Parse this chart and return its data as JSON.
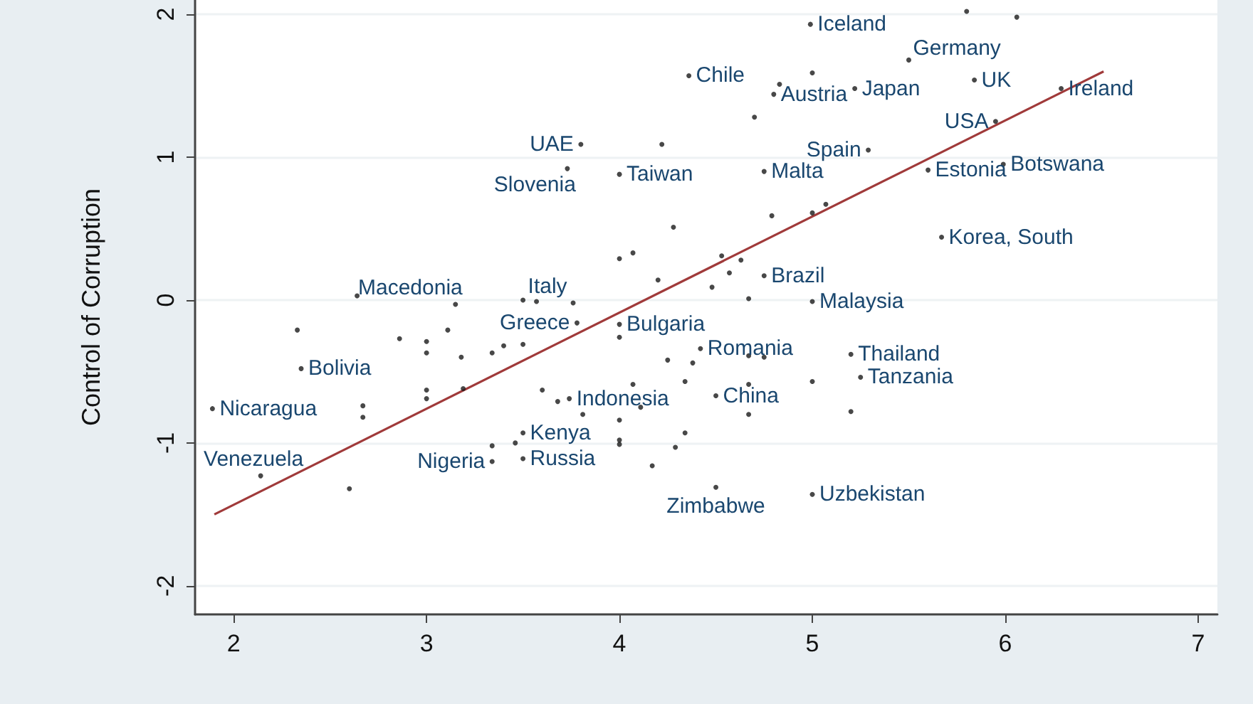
{
  "chart_data": {
    "type": "scatter",
    "ylabel": "Control of Corruption",
    "xlim": [
      1.8,
      7.1
    ],
    "xticks": [
      2,
      3,
      4,
      5,
      6,
      7
    ],
    "ylim": [
      -2.2,
      2.1
    ],
    "yticks": [
      -2,
      -1,
      0,
      1,
      2
    ],
    "grid": "y",
    "series": [
      {
        "color": "#1a1a1a",
        "marker": "circle",
        "x": [
          4.99,
          5.8,
          6.06,
          4.36,
          5.0,
          5.5,
          5.84,
          4.83,
          4.8,
          5.22,
          4.7,
          6.29,
          5.95,
          3.8,
          4.22,
          3.73,
          4.0,
          5.29,
          4.75,
          5.6,
          5.99,
          4.28,
          4.0,
          4.07,
          4.79,
          5.0,
          5.07,
          5.67,
          4.2,
          4.48,
          4.53,
          4.57,
          4.63,
          4.75,
          4.67,
          5.0,
          2.64,
          3.15,
          3.5,
          3.57,
          3.76,
          3.78,
          2.33,
          2.86,
          3.0,
          3.0,
          3.11,
          3.18,
          3.34,
          3.4,
          3.5,
          4.0,
          4.0,
          2.35,
          1.89,
          2.67,
          2.67,
          3.0,
          3.0,
          3.19,
          2.14,
          2.6,
          3.6,
          3.68,
          3.74,
          3.81,
          4.0,
          4.07,
          4.34,
          4.25,
          4.38,
          4.11,
          4.5,
          3.5,
          3.46,
          3.34,
          3.34,
          3.5,
          4.0,
          4.0,
          4.34,
          4.29,
          4.17,
          4.5,
          5.0,
          4.42,
          4.67,
          4.75,
          4.67,
          4.67,
          5.0,
          5.2,
          5.25,
          5.2
        ],
        "values": [
          1.93,
          2.02,
          1.98,
          1.57,
          1.59,
          1.68,
          1.54,
          1.51,
          1.44,
          1.48,
          1.28,
          1.48,
          1.25,
          1.09,
          1.09,
          0.92,
          0.88,
          1.05,
          0.9,
          0.91,
          0.95,
          0.51,
          0.29,
          0.33,
          0.59,
          0.61,
          0.67,
          0.44,
          0.14,
          0.09,
          0.31,
          0.19,
          0.28,
          0.17,
          0.01,
          -0.01,
          0.03,
          -0.03,
          0.0,
          -0.01,
          -0.02,
          -0.16,
          -0.21,
          -0.27,
          -0.29,
          -0.37,
          -0.21,
          -0.4,
          -0.37,
          -0.32,
          -0.31,
          -0.17,
          -0.26,
          -0.48,
          -0.76,
          -0.74,
          -0.82,
          -0.63,
          -0.69,
          -0.62,
          -1.23,
          -1.32,
          -0.63,
          -0.71,
          -0.69,
          -0.8,
          -0.84,
          -0.59,
          -0.57,
          -0.42,
          -0.44,
          -0.75,
          -0.67,
          -0.93,
          -1.0,
          -1.02,
          -1.13,
          -1.11,
          -0.98,
          -1.01,
          -0.93,
          -1.03,
          -1.16,
          -1.31,
          -1.36,
          -0.34,
          -0.39,
          -0.4,
          -0.59,
          -0.8,
          -0.57,
          -0.38,
          -0.54,
          -0.78
        ]
      },
      {
        "type": "line",
        "color": "#a03a3a",
        "marker": "none",
        "x": [
          1.9,
          6.51
        ],
        "values": [
          -1.5,
          1.6
        ]
      }
    ],
    "annotations": [
      {
        "text": "Iceland",
        "x": 4.99,
        "y": 1.93
      },
      {
        "text": "Chile",
        "x": 4.36,
        "y": 1.57
      },
      {
        "text": "Germany",
        "x": 5.5,
        "y": 1.68
      },
      {
        "text": "UK",
        "x": 5.84,
        "y": 1.54
      },
      {
        "text": "Austria",
        "x": 4.8,
        "y": 1.44
      },
      {
        "text": "Japan",
        "x": 5.22,
        "y": 1.48
      },
      {
        "text": "Ireland",
        "x": 6.29,
        "y": 1.48
      },
      {
        "text": "USA",
        "x": 5.95,
        "y": 1.25
      },
      {
        "text": "UAE",
        "x": 3.8,
        "y": 1.09
      },
      {
        "text": "Slovenia",
        "x": 3.73,
        "y": 0.92
      },
      {
        "text": "Taiwan",
        "x": 4.0,
        "y": 0.88
      },
      {
        "text": "Spain",
        "x": 5.29,
        "y": 1.05
      },
      {
        "text": "Malta",
        "x": 4.75,
        "y": 0.9
      },
      {
        "text": "Estonia",
        "x": 5.6,
        "y": 0.91
      },
      {
        "text": "Botswana",
        "x": 5.99,
        "y": 0.95
      },
      {
        "text": "Korea, South",
        "x": 5.67,
        "y": 0.44
      },
      {
        "text": "Brazil",
        "x": 4.75,
        "y": 0.17
      },
      {
        "text": "Malaysia",
        "x": 5.0,
        "y": -0.01
      },
      {
        "text": "Macedonia",
        "x": 3.15,
        "y": -0.03
      },
      {
        "text": "Italy",
        "x": 3.76,
        "y": -0.02
      },
      {
        "text": "Greece",
        "x": 3.78,
        "y": -0.16
      },
      {
        "text": "Bulgaria",
        "x": 4.0,
        "y": -0.17
      },
      {
        "text": "Romania",
        "x": 4.42,
        "y": -0.34
      },
      {
        "text": "Bolivia",
        "x": 2.35,
        "y": -0.48
      },
      {
        "text": "Nicaragua",
        "x": 1.89,
        "y": -0.76
      },
      {
        "text": "Venezuela",
        "x": 2.14,
        "y": -1.23
      },
      {
        "text": "Indonesia",
        "x": 3.74,
        "y": -0.69
      },
      {
        "text": "China",
        "x": 4.5,
        "y": -0.67
      },
      {
        "text": "Thailand",
        "x": 5.2,
        "y": -0.38
      },
      {
        "text": "Tanzania",
        "x": 5.25,
        "y": -0.54
      },
      {
        "text": "Kenya",
        "x": 3.5,
        "y": -0.93
      },
      {
        "text": "Nigeria",
        "x": 3.34,
        "y": -1.13
      },
      {
        "text": "Russia",
        "x": 3.5,
        "y": -1.11
      },
      {
        "text": "Zimbabwe",
        "x": 4.5,
        "y": -1.31
      },
      {
        "text": "Uzbekistan",
        "x": 5.0,
        "y": -1.36
      }
    ]
  }
}
